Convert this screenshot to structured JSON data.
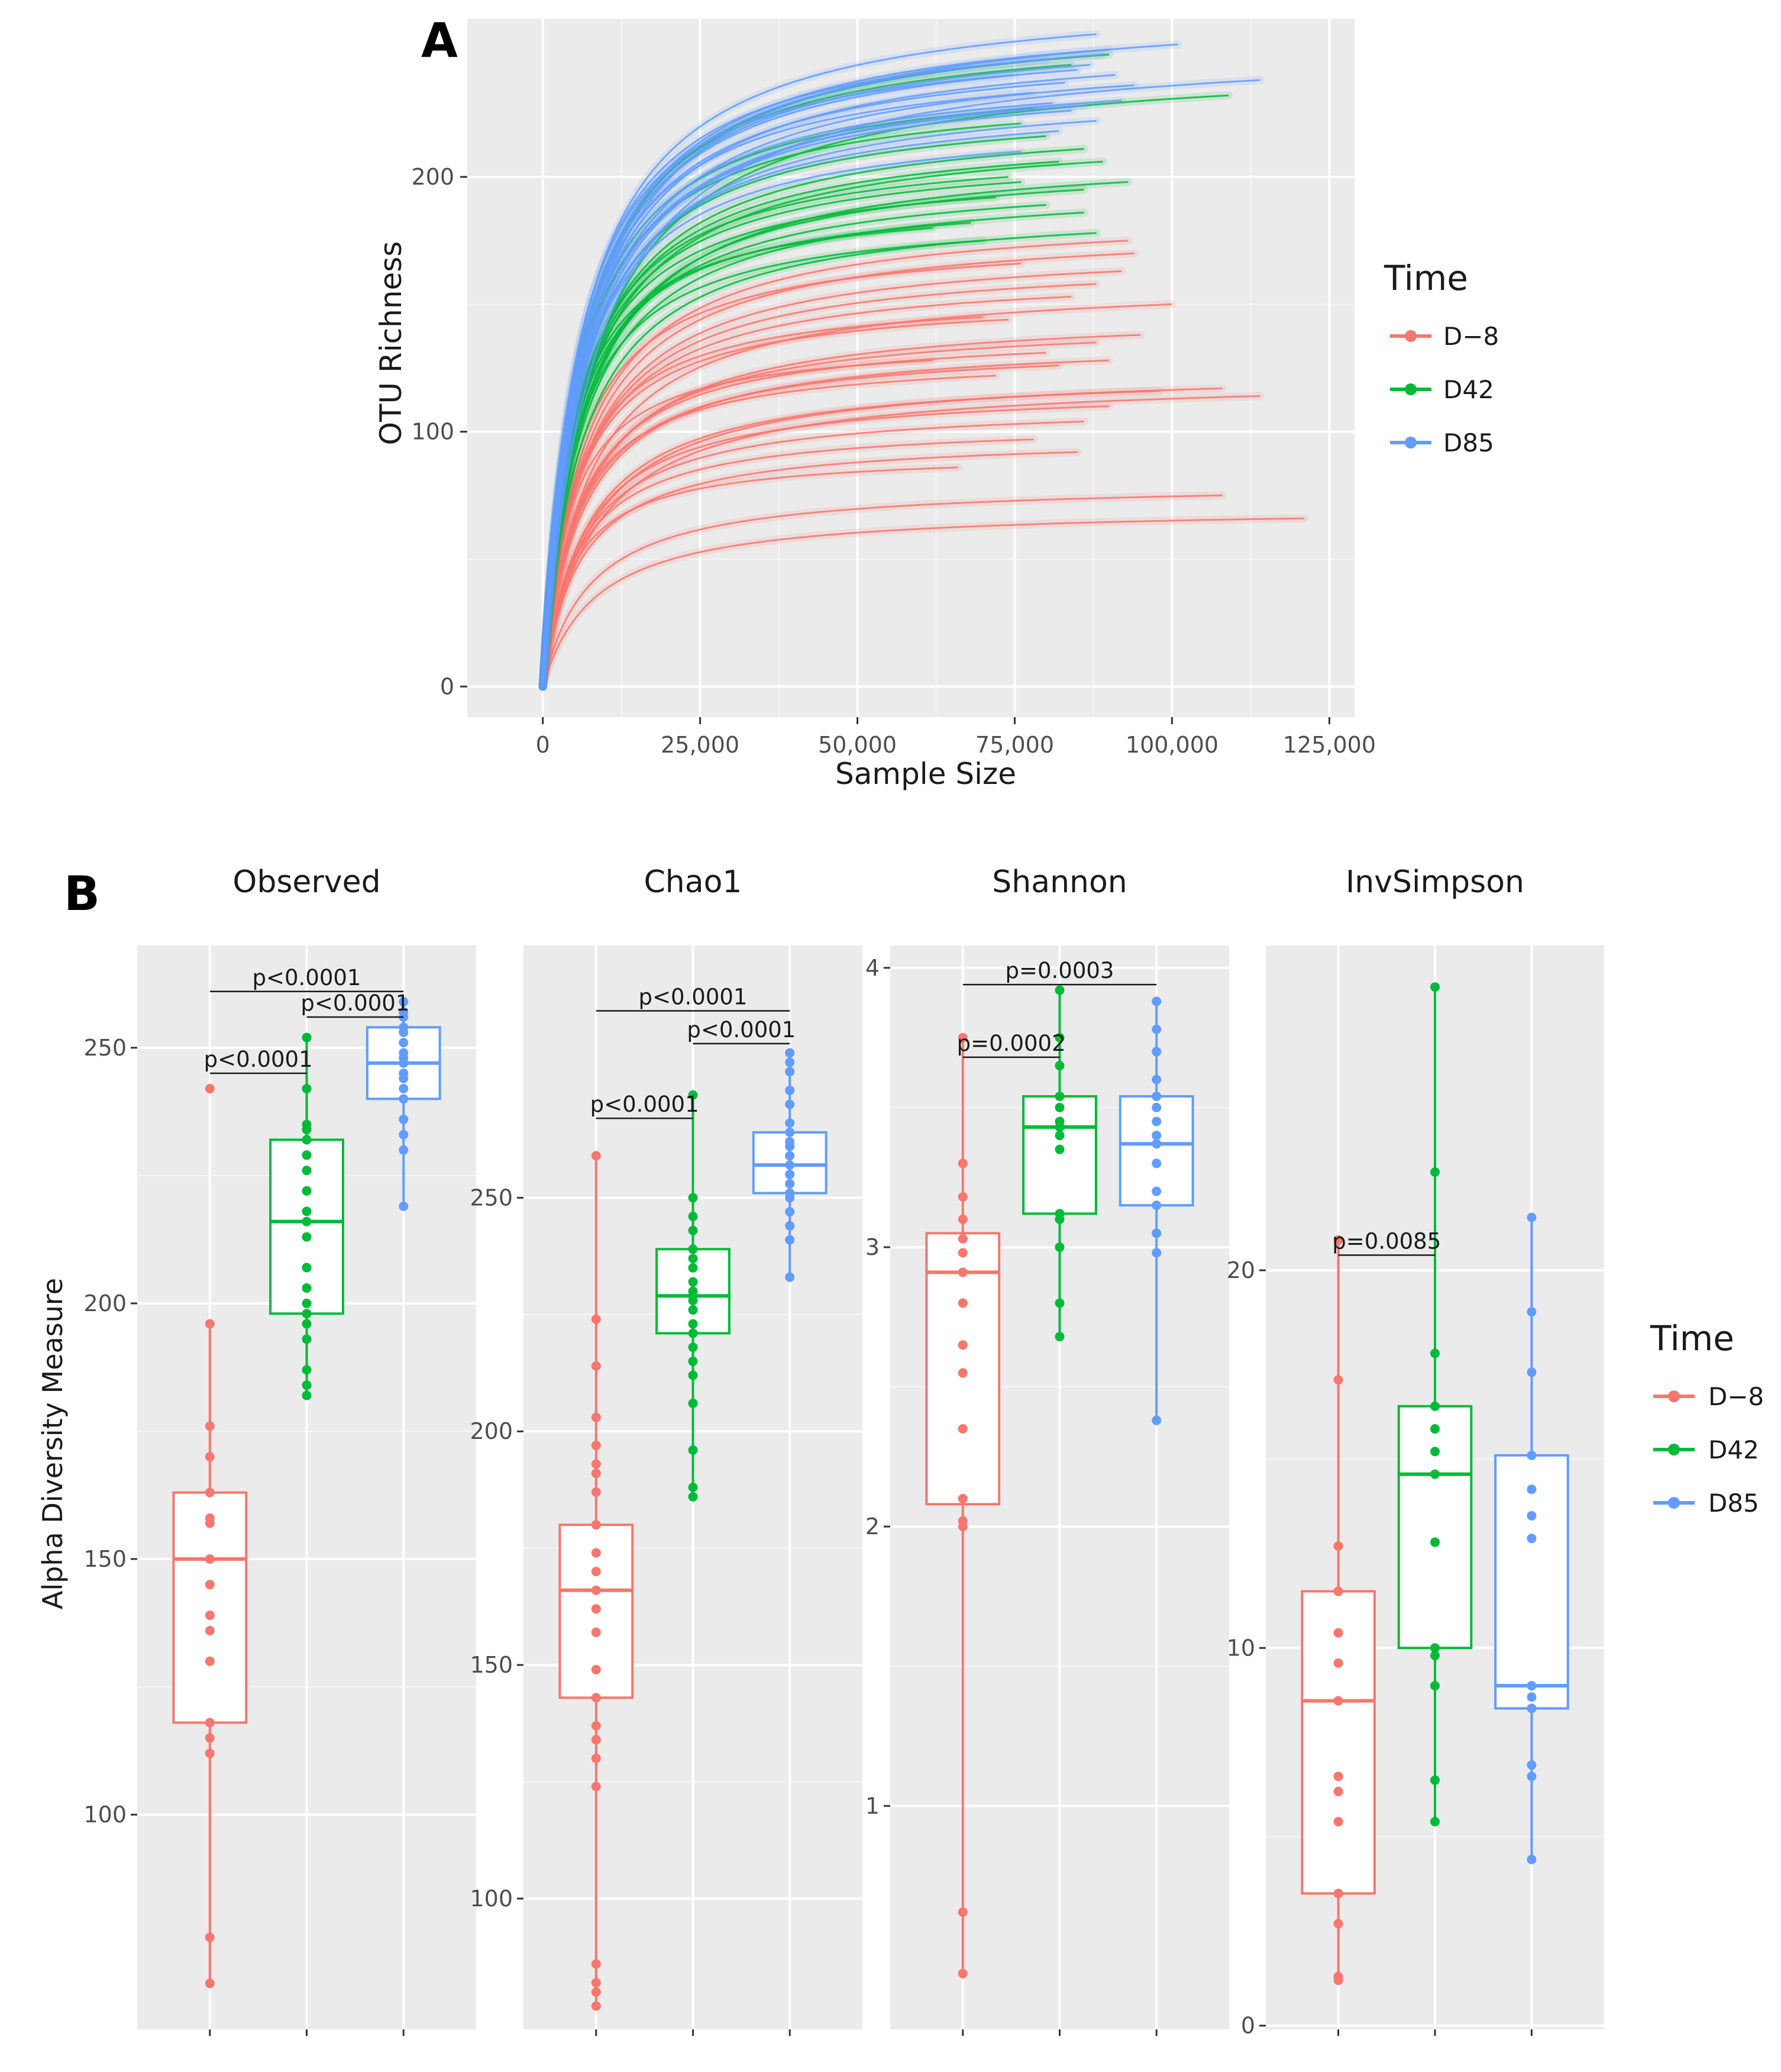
{
  "colors": {
    "D-8": "#f8766d",
    "D42": "#00ba38",
    "D85": "#619cff"
  },
  "legend": {
    "title": "Time",
    "items": [
      "D−8",
      "D42",
      "D85"
    ]
  },
  "chart_data": [
    {
      "id": "A",
      "panel_label": "A",
      "type": "line",
      "title": "",
      "xlabel": "Sample Size",
      "ylabel": "OTU Richness",
      "xlim": [
        -12000,
        129000
      ],
      "ylim": [
        -12,
        262
      ],
      "x_ticks": [
        0,
        25000,
        50000,
        75000,
        100000,
        125000
      ],
      "x_tick_labels": [
        "0",
        "25,000",
        "50,000",
        "75,000",
        "100,000",
        "125,000"
      ],
      "y_ticks": [
        0,
        100,
        200
      ],
      "y_tick_labels": [
        "0",
        "100",
        "200"
      ],
      "curve_model": "richness(x) = final * x / (k + x), k = 0.07 * max_sample_size",
      "series": [
        {
          "name": "D-8",
          "curves": [
            [
              121000,
              66
            ],
            [
              108000,
              75
            ],
            [
              114000,
              114
            ],
            [
              108000,
              117
            ],
            [
              98000,
              116
            ],
            [
              90000,
              110
            ],
            [
              86000,
              104
            ],
            [
              100000,
              150
            ],
            [
              95000,
              138
            ],
            [
              88000,
              135
            ],
            [
              80000,
              131
            ],
            [
              82000,
              126
            ],
            [
              93000,
              175
            ],
            [
              94000,
              170
            ],
            [
              92000,
              163
            ],
            [
              88000,
              158
            ],
            [
              84000,
              153
            ],
            [
              76000,
              166
            ],
            [
              70000,
              145
            ],
            [
              62000,
              128
            ],
            [
              72000,
              122
            ],
            [
              78000,
              97
            ],
            [
              85000,
              92
            ],
            [
              66000,
              86
            ],
            [
              74000,
              144
            ],
            [
              90000,
              128
            ]
          ]
        },
        {
          "name": "D42",
          "curves": [
            [
              109000,
              232
            ],
            [
              86000,
              211
            ],
            [
              89000,
              206
            ],
            [
              76000,
              198
            ],
            [
              93000,
              198
            ],
            [
              86000,
              186
            ],
            [
              68000,
              182
            ],
            [
              80000,
              189
            ],
            [
              72000,
              192
            ],
            [
              88000,
              178
            ],
            [
              76000,
              221
            ],
            [
              84000,
              244
            ],
            [
              74000,
              200
            ],
            [
              82000,
              206
            ],
            [
              78000,
              227
            ],
            [
              90000,
              248
            ],
            [
              70000,
              175
            ],
            [
              62000,
              180
            ],
            [
              86000,
              195
            ],
            [
              80000,
              216
            ]
          ]
        },
        {
          "name": "D85",
          "curves": [
            [
              114000,
              238
            ],
            [
              101000,
              252
            ],
            [
              88000,
              256
            ],
            [
              89000,
              248
            ],
            [
              87000,
              244
            ],
            [
              91000,
              240
            ],
            [
              94000,
              236
            ],
            [
              82000,
              218
            ],
            [
              84000,
              226
            ],
            [
              86000,
              228
            ],
            [
              76000,
              210
            ],
            [
              80000,
              246
            ],
            [
              92000,
              230
            ],
            [
              90000,
              250
            ],
            [
              85000,
              242
            ],
            [
              78000,
              233
            ],
            [
              83000,
              237
            ],
            [
              88000,
              222
            ],
            [
              75000,
              240
            ],
            [
              81000,
              229
            ]
          ]
        }
      ]
    },
    {
      "id": "B-observed",
      "panel_label": "B",
      "type": "box",
      "title": "Observed",
      "xlabel": "",
      "ylabel": "Alpha Diversity Measure",
      "ylim": [
        58,
        270
      ],
      "y_ticks": [
        100,
        150,
        200,
        250
      ],
      "y_tick_labels": [
        "100",
        "150",
        "200",
        "250"
      ],
      "series": [
        {
          "name": "D-8",
          "q1": 118,
          "median": 150,
          "q3": 163,
          "whisker_low": 67,
          "whisker_high": 196,
          "points": [
            67,
            76,
            112,
            115,
            118,
            130,
            136,
            139,
            145,
            150,
            157,
            158,
            163,
            170,
            176,
            196,
            242
          ]
        },
        {
          "name": "D42",
          "q1": 198,
          "median": 216,
          "q3": 232,
          "whisker_low": 182,
          "whisker_high": 252,
          "points": [
            182,
            184,
            187,
            193,
            196,
            198,
            200,
            203,
            207,
            213,
            216,
            218,
            222,
            226,
            229,
            232,
            234,
            235,
            242,
            252
          ]
        },
        {
          "name": "D85",
          "q1": 240,
          "median": 247,
          "q3": 254,
          "whisker_low": 219,
          "whisker_high": 259,
          "points": [
            219,
            230,
            233,
            236,
            240,
            242,
            244,
            245,
            247,
            248,
            249,
            251,
            253,
            254,
            256,
            257,
            259
          ]
        }
      ],
      "comparisons": [
        {
          "from": "D-8",
          "to": "D42",
          "label": "p<0.0001",
          "y": 245
        },
        {
          "from": "D-8",
          "to": "D85",
          "label": "p<0.0001",
          "y": 261
        },
        {
          "from": "D42",
          "to": "D85",
          "label": "p<0.0001",
          "y": 256
        }
      ]
    },
    {
      "id": "B-chao1",
      "panel_label": "",
      "type": "box",
      "title": "Chao1",
      "xlabel": "",
      "ylabel": "",
      "ylim": [
        72,
        304
      ],
      "y_ticks": [
        100,
        150,
        200,
        250
      ],
      "y_tick_labels": [
        "100",
        "150",
        "200",
        "250"
      ],
      "series": [
        {
          "name": "D-8",
          "q1": 143,
          "median": 166,
          "q3": 180,
          "whisker_low": 77,
          "whisker_high": 259,
          "points": [
            77,
            80,
            82,
            86,
            124,
            130,
            134,
            137,
            143,
            149,
            157,
            162,
            166,
            170,
            174,
            180,
            187,
            191,
            193,
            197,
            203,
            214,
            224,
            259
          ]
        },
        {
          "name": "D42",
          "q1": 221,
          "median": 229,
          "q3": 239,
          "whisker_low": 186,
          "whisker_high": 272,
          "points": [
            186,
            188,
            196,
            206,
            212,
            215,
            218,
            221,
            223,
            226,
            228,
            229,
            230,
            232,
            235,
            237,
            239,
            243,
            246,
            250,
            272
          ]
        },
        {
          "name": "D85",
          "q1": 251,
          "median": 257,
          "q3": 264,
          "whisker_low": 233,
          "whisker_high": 281,
          "points": [
            233,
            241,
            244,
            247,
            250,
            251,
            253,
            255,
            257,
            259,
            261,
            262,
            264,
            266,
            270,
            273,
            277,
            279,
            281
          ]
        }
      ],
      "comparisons": [
        {
          "from": "D-8",
          "to": "D42",
          "label": "p<0.0001",
          "y": 267
        },
        {
          "from": "D-8",
          "to": "D85",
          "label": "p<0.0001",
          "y": 290
        },
        {
          "from": "D42",
          "to": "D85",
          "label": "p<0.0001",
          "y": 283
        }
      ]
    },
    {
      "id": "B-shannon",
      "panel_label": "",
      "type": "box",
      "title": "Shannon",
      "xlabel": "",
      "ylabel": "",
      "ylim": [
        0.2,
        4.08
      ],
      "y_ticks": [
        1,
        2,
        3,
        4
      ],
      "y_tick_labels": [
        "1",
        "2",
        "3",
        "4"
      ],
      "series": [
        {
          "name": "D-8",
          "q1": 2.08,
          "median": 2.91,
          "q3": 3.05,
          "whisker_low": 0.4,
          "whisker_high": 3.75,
          "points": [
            0.4,
            0.62,
            2.0,
            2.02,
            2.1,
            2.35,
            2.55,
            2.65,
            2.8,
            2.91,
            2.98,
            3.03,
            3.1,
            3.18,
            3.3,
            3.75
          ]
        },
        {
          "name": "D42",
          "q1": 3.12,
          "median": 3.43,
          "q3": 3.54,
          "whisker_low": 2.68,
          "whisker_high": 3.92,
          "points": [
            2.68,
            2.8,
            3.0,
            3.1,
            3.12,
            3.35,
            3.4,
            3.43,
            3.45,
            3.5,
            3.54,
            3.65,
            3.75,
            3.92
          ]
        },
        {
          "name": "D85",
          "q1": 3.15,
          "median": 3.37,
          "q3": 3.54,
          "whisker_low": 2.38,
          "whisker_high": 3.88,
          "points": [
            2.38,
            2.98,
            3.05,
            3.15,
            3.2,
            3.3,
            3.37,
            3.4,
            3.45,
            3.5,
            3.54,
            3.6,
            3.7,
            3.78,
            3.88
          ]
        }
      ],
      "comparisons": [
        {
          "from": "D-8",
          "to": "D42",
          "label": "p=0.0002",
          "y": 3.68
        },
        {
          "from": "D-8",
          "to": "D85",
          "label": "p=0.0003",
          "y": 3.94
        }
      ]
    },
    {
      "id": "B-invsimpson",
      "panel_label": "",
      "type": "box",
      "title": "InvSimpson",
      "xlabel": "",
      "ylabel": "",
      "ylim": [
        -0.1,
        28.6
      ],
      "y_ticks": [
        0,
        10,
        20
      ],
      "y_tick_labels": [
        "0",
        "10",
        "20"
      ],
      "series": [
        {
          "name": "D-8",
          "q1": 3.5,
          "median": 8.6,
          "q3": 11.5,
          "whisker_low": 1.2,
          "whisker_high": 20.8,
          "points": [
            1.2,
            1.3,
            2.7,
            3.5,
            5.4,
            6.2,
            6.6,
            8.6,
            9.6,
            10.4,
            11.5,
            12.7,
            17.1,
            20.8
          ]
        },
        {
          "name": "D42",
          "q1": 10.0,
          "median": 14.6,
          "q3": 16.4,
          "whisker_low": 5.4,
          "whisker_high": 27.5,
          "points": [
            5.4,
            6.5,
            9.0,
            9.8,
            10.0,
            12.8,
            14.6,
            15.2,
            15.8,
            16.4,
            17.8,
            22.6,
            27.5
          ]
        },
        {
          "name": "D85",
          "q1": 8.4,
          "median": 9.0,
          "q3": 15.1,
          "whisker_low": 4.4,
          "whisker_high": 21.4,
          "points": [
            4.4,
            6.6,
            6.9,
            8.4,
            8.7,
            9.0,
            12.9,
            13.5,
            14.2,
            15.1,
            17.3,
            18.9,
            21.4
          ]
        }
      ],
      "comparisons": [
        {
          "from": "D-8",
          "to": "D42",
          "label": "p=0.0085",
          "y": 20.4
        }
      ]
    }
  ]
}
